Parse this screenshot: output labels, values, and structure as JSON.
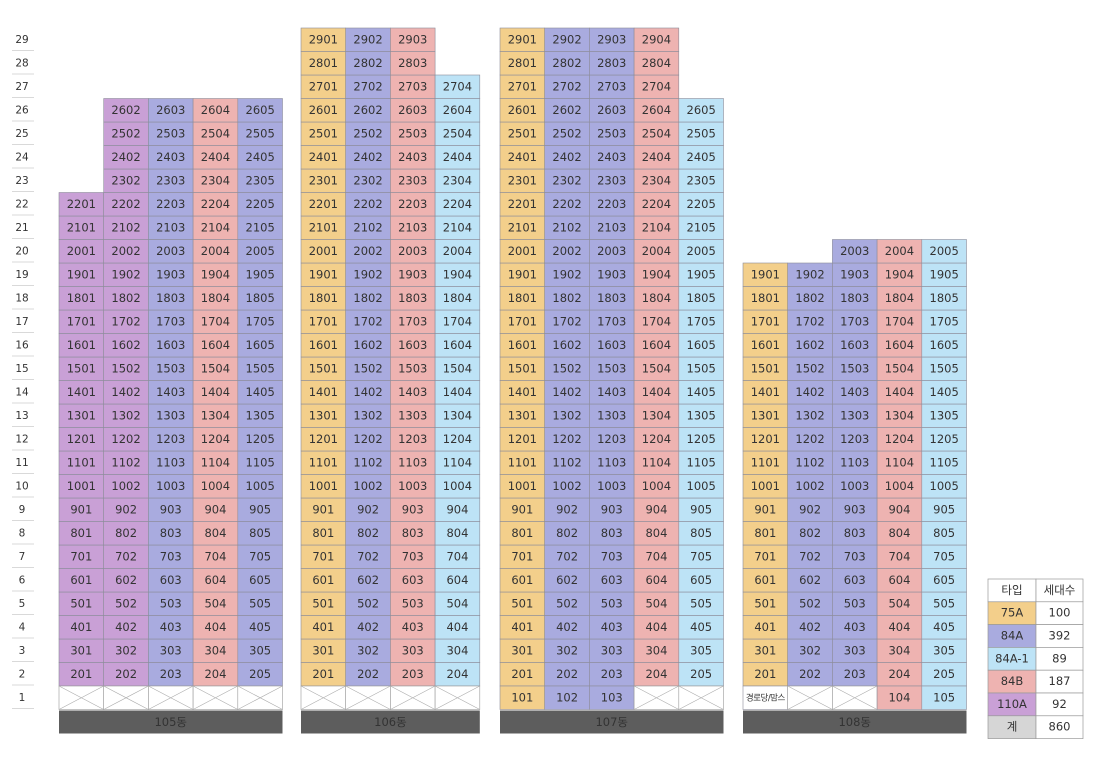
{
  "floors": [
    1,
    2,
    3,
    4,
    5,
    6,
    7,
    8,
    9,
    10,
    11,
    12,
    13,
    14,
    15,
    16,
    17,
    18,
    19,
    20,
    21,
    22,
    23,
    24,
    25,
    26,
    27,
    28,
    29
  ],
  "buildings": [
    {
      "name": "105동",
      "ground": [
        null,
        null,
        null,
        null,
        null
      ],
      "columns": [
        {
          "type": "110A",
          "units": [
            "201",
            "301",
            "401",
            "501",
            "601",
            "701",
            "801",
            "901",
            "1001",
            "1101",
            "1201",
            "1301",
            "1401",
            "1501",
            "1601",
            "1701",
            "1801",
            "1901",
            "2001",
            "2101",
            "2201"
          ]
        },
        {
          "type": "110A",
          "units": [
            "202",
            "302",
            "402",
            "502",
            "602",
            "702",
            "802",
            "902",
            "1002",
            "1102",
            "1202",
            "1302",
            "1402",
            "1502",
            "1602",
            "1702",
            "1802",
            "1902",
            "2002",
            "2102",
            "2202",
            "2302",
            "2402",
            "2502",
            "2602"
          ]
        },
        {
          "type": "84A",
          "units": [
            "203",
            "303",
            "403",
            "503",
            "603",
            "703",
            "803",
            "903",
            "1003",
            "1103",
            "1203",
            "1303",
            "1403",
            "1503",
            "1603",
            "1703",
            "1803",
            "1903",
            "2003",
            "2103",
            "2203",
            "2303",
            "2403",
            "2503",
            "2603"
          ]
        },
        {
          "type": "84B",
          "units": [
            "204",
            "304",
            "404",
            "504",
            "604",
            "704",
            "804",
            "904",
            "1004",
            "1104",
            "1204",
            "1304",
            "1404",
            "1504",
            "1604",
            "1704",
            "1804",
            "1904",
            "2004",
            "2104",
            "2204",
            "2304",
            "2404",
            "2504",
            "2604"
          ]
        },
        {
          "type": "84A",
          "units": [
            "205",
            "305",
            "405",
            "505",
            "605",
            "705",
            "805",
            "905",
            "1005",
            "1105",
            "1205",
            "1305",
            "1405",
            "1505",
            "1605",
            "1705",
            "1805",
            "1905",
            "2005",
            "2105",
            "2205",
            "2305",
            "2405",
            "2505",
            "2605"
          ]
        }
      ]
    },
    {
      "name": "106동",
      "ground": [
        null,
        null,
        null,
        null
      ],
      "columns": [
        {
          "type": "75A",
          "units": [
            "201",
            "301",
            "401",
            "501",
            "601",
            "701",
            "801",
            "901",
            "1001",
            "1101",
            "1201",
            "1301",
            "1401",
            "1501",
            "1601",
            "1701",
            "1801",
            "1901",
            "2001",
            "2101",
            "2201",
            "2301",
            "2401",
            "2501",
            "2601",
            "2701",
            "2801",
            "2901"
          ]
        },
        {
          "type": "84A",
          "units": [
            "202",
            "302",
            "402",
            "502",
            "602",
            "702",
            "802",
            "902",
            "1002",
            "1102",
            "1202",
            "1302",
            "1402",
            "1502",
            "1602",
            "1702",
            "1802",
            "1902",
            "2002",
            "2102",
            "2202",
            "2302",
            "2402",
            "2502",
            "2602",
            "2702",
            "2802",
            "2902"
          ]
        },
        {
          "type": "84B",
          "units": [
            "203",
            "303",
            "403",
            "503",
            "603",
            "703",
            "803",
            "903",
            "1003",
            "1103",
            "1203",
            "1303",
            "1403",
            "1503",
            "1603",
            "1703",
            "1803",
            "1903",
            "2003",
            "2103",
            "2203",
            "2303",
            "2403",
            "2503",
            "2603",
            "2703",
            "2803",
            "2903"
          ]
        },
        {
          "type": "84A-1",
          "units": [
            "204",
            "304",
            "404",
            "504",
            "604",
            "704",
            "804",
            "904",
            "1004",
            "1104",
            "1204",
            "1304",
            "1404",
            "1504",
            "1604",
            "1704",
            "1804",
            "1904",
            "2004",
            "2104",
            "2204",
            "2304",
            "2404",
            "2504",
            "2604",
            "2704"
          ]
        }
      ]
    },
    {
      "name": "107동",
      "ground": [
        {
          "label": "101",
          "type": "75A"
        },
        {
          "label": "102",
          "type": "84A"
        },
        {
          "label": "103",
          "type": "84A"
        },
        null,
        null
      ],
      "columns": [
        {
          "type": "75A",
          "units": [
            "201",
            "301",
            "401",
            "501",
            "601",
            "701",
            "801",
            "901",
            "1001",
            "1101",
            "1201",
            "1301",
            "1401",
            "1501",
            "1601",
            "1701",
            "1801",
            "1901",
            "2001",
            "2101",
            "2201",
            "2301",
            "2401",
            "2501",
            "2601",
            "2701",
            "2801",
            "2901"
          ]
        },
        {
          "type": "84A",
          "units": [
            "202",
            "302",
            "402",
            "502",
            "602",
            "702",
            "802",
            "902",
            "1002",
            "1102",
            "1202",
            "1302",
            "1402",
            "1502",
            "1602",
            "1702",
            "1802",
            "1902",
            "2002",
            "2102",
            "2202",
            "2302",
            "2402",
            "2502",
            "2602",
            "2702",
            "2802",
            "2902"
          ]
        },
        {
          "type": "84A",
          "units": [
            "203",
            "303",
            "403",
            "503",
            "603",
            "703",
            "803",
            "903",
            "1003",
            "1103",
            "1203",
            "1303",
            "1403",
            "1503",
            "1603",
            "1703",
            "1803",
            "1903",
            "2003",
            "2103",
            "2203",
            "2303",
            "2403",
            "2503",
            "2603",
            "2703",
            "2803",
            "2903"
          ]
        },
        {
          "type": "84B",
          "units": [
            "204",
            "304",
            "404",
            "504",
            "604",
            "704",
            "804",
            "904",
            "1004",
            "1104",
            "1204",
            "1304",
            "1404",
            "1504",
            "1604",
            "1704",
            "1804",
            "1904",
            "2004",
            "2104",
            "2204",
            "2304",
            "2404",
            "2504",
            "2604",
            "2704",
            "2804",
            "2904"
          ]
        },
        {
          "type": "84A-1",
          "units": [
            "205",
            "305",
            "405",
            "505",
            "605",
            "705",
            "805",
            "905",
            "1005",
            "1105",
            "1205",
            "1305",
            "1405",
            "1505",
            "1605",
            "1705",
            "1805",
            "1905",
            "2005",
            "2105",
            "2205",
            "2305",
            "2405",
            "2505",
            "2605"
          ]
        }
      ]
    },
    {
      "name": "108동",
      "ground": [
        {
          "label": "경로당/맘스"
        },
        null,
        null,
        {
          "label": "104",
          "type": "84B"
        },
        {
          "label": "105",
          "type": "84A-1"
        }
      ],
      "columns": [
        {
          "type": "75A",
          "units": [
            "201",
            "301",
            "401",
            "501",
            "601",
            "701",
            "801",
            "901",
            "1001",
            "1101",
            "1201",
            "1301",
            "1401",
            "1501",
            "1601",
            "1701",
            "1801",
            "1901"
          ]
        },
        {
          "type": "84A",
          "units": [
            "202",
            "302",
            "402",
            "502",
            "602",
            "702",
            "802",
            "902",
            "1002",
            "1102",
            "1202",
            "1302",
            "1402",
            "1502",
            "1602",
            "1702",
            "1802",
            "1902"
          ]
        },
        {
          "type": "84A",
          "units": [
            "203",
            "303",
            "403",
            "503",
            "603",
            "703",
            "803",
            "903",
            "1003",
            "1103",
            "1203",
            "1303",
            "1403",
            "1503",
            "1603",
            "1703",
            "1803",
            "1903",
            "2003"
          ]
        },
        {
          "type": "84B",
          "units": [
            "204",
            "304",
            "404",
            "504",
            "604",
            "704",
            "804",
            "904",
            "1004",
            "1104",
            "1204",
            "1304",
            "1404",
            "1504",
            "1604",
            "1704",
            "1804",
            "1904",
            "2004"
          ]
        },
        {
          "type": "84A-1",
          "units": [
            "205",
            "305",
            "405",
            "505",
            "605",
            "705",
            "805",
            "905",
            "1005",
            "1105",
            "1205",
            "1305",
            "1405",
            "1505",
            "1605",
            "1705",
            "1805",
            "1905",
            "2005"
          ]
        }
      ]
    }
  ],
  "legend": {
    "header": [
      "타입",
      "세대수"
    ],
    "rows": [
      {
        "type": "75A",
        "color": "#f3cf8b",
        "count": 100
      },
      {
        "type": "84A",
        "color": "#a9abdf",
        "count": 392
      },
      {
        "type": "84A-1",
        "color": "#bde3f6",
        "count": 89
      },
      {
        "type": "84B",
        "color": "#eeb3b1",
        "count": 187
      },
      {
        "type": "110A",
        "color": "#c9a0d6",
        "count": 92
      }
    ],
    "total": {
      "label": "계",
      "count": 860
    }
  }
}
